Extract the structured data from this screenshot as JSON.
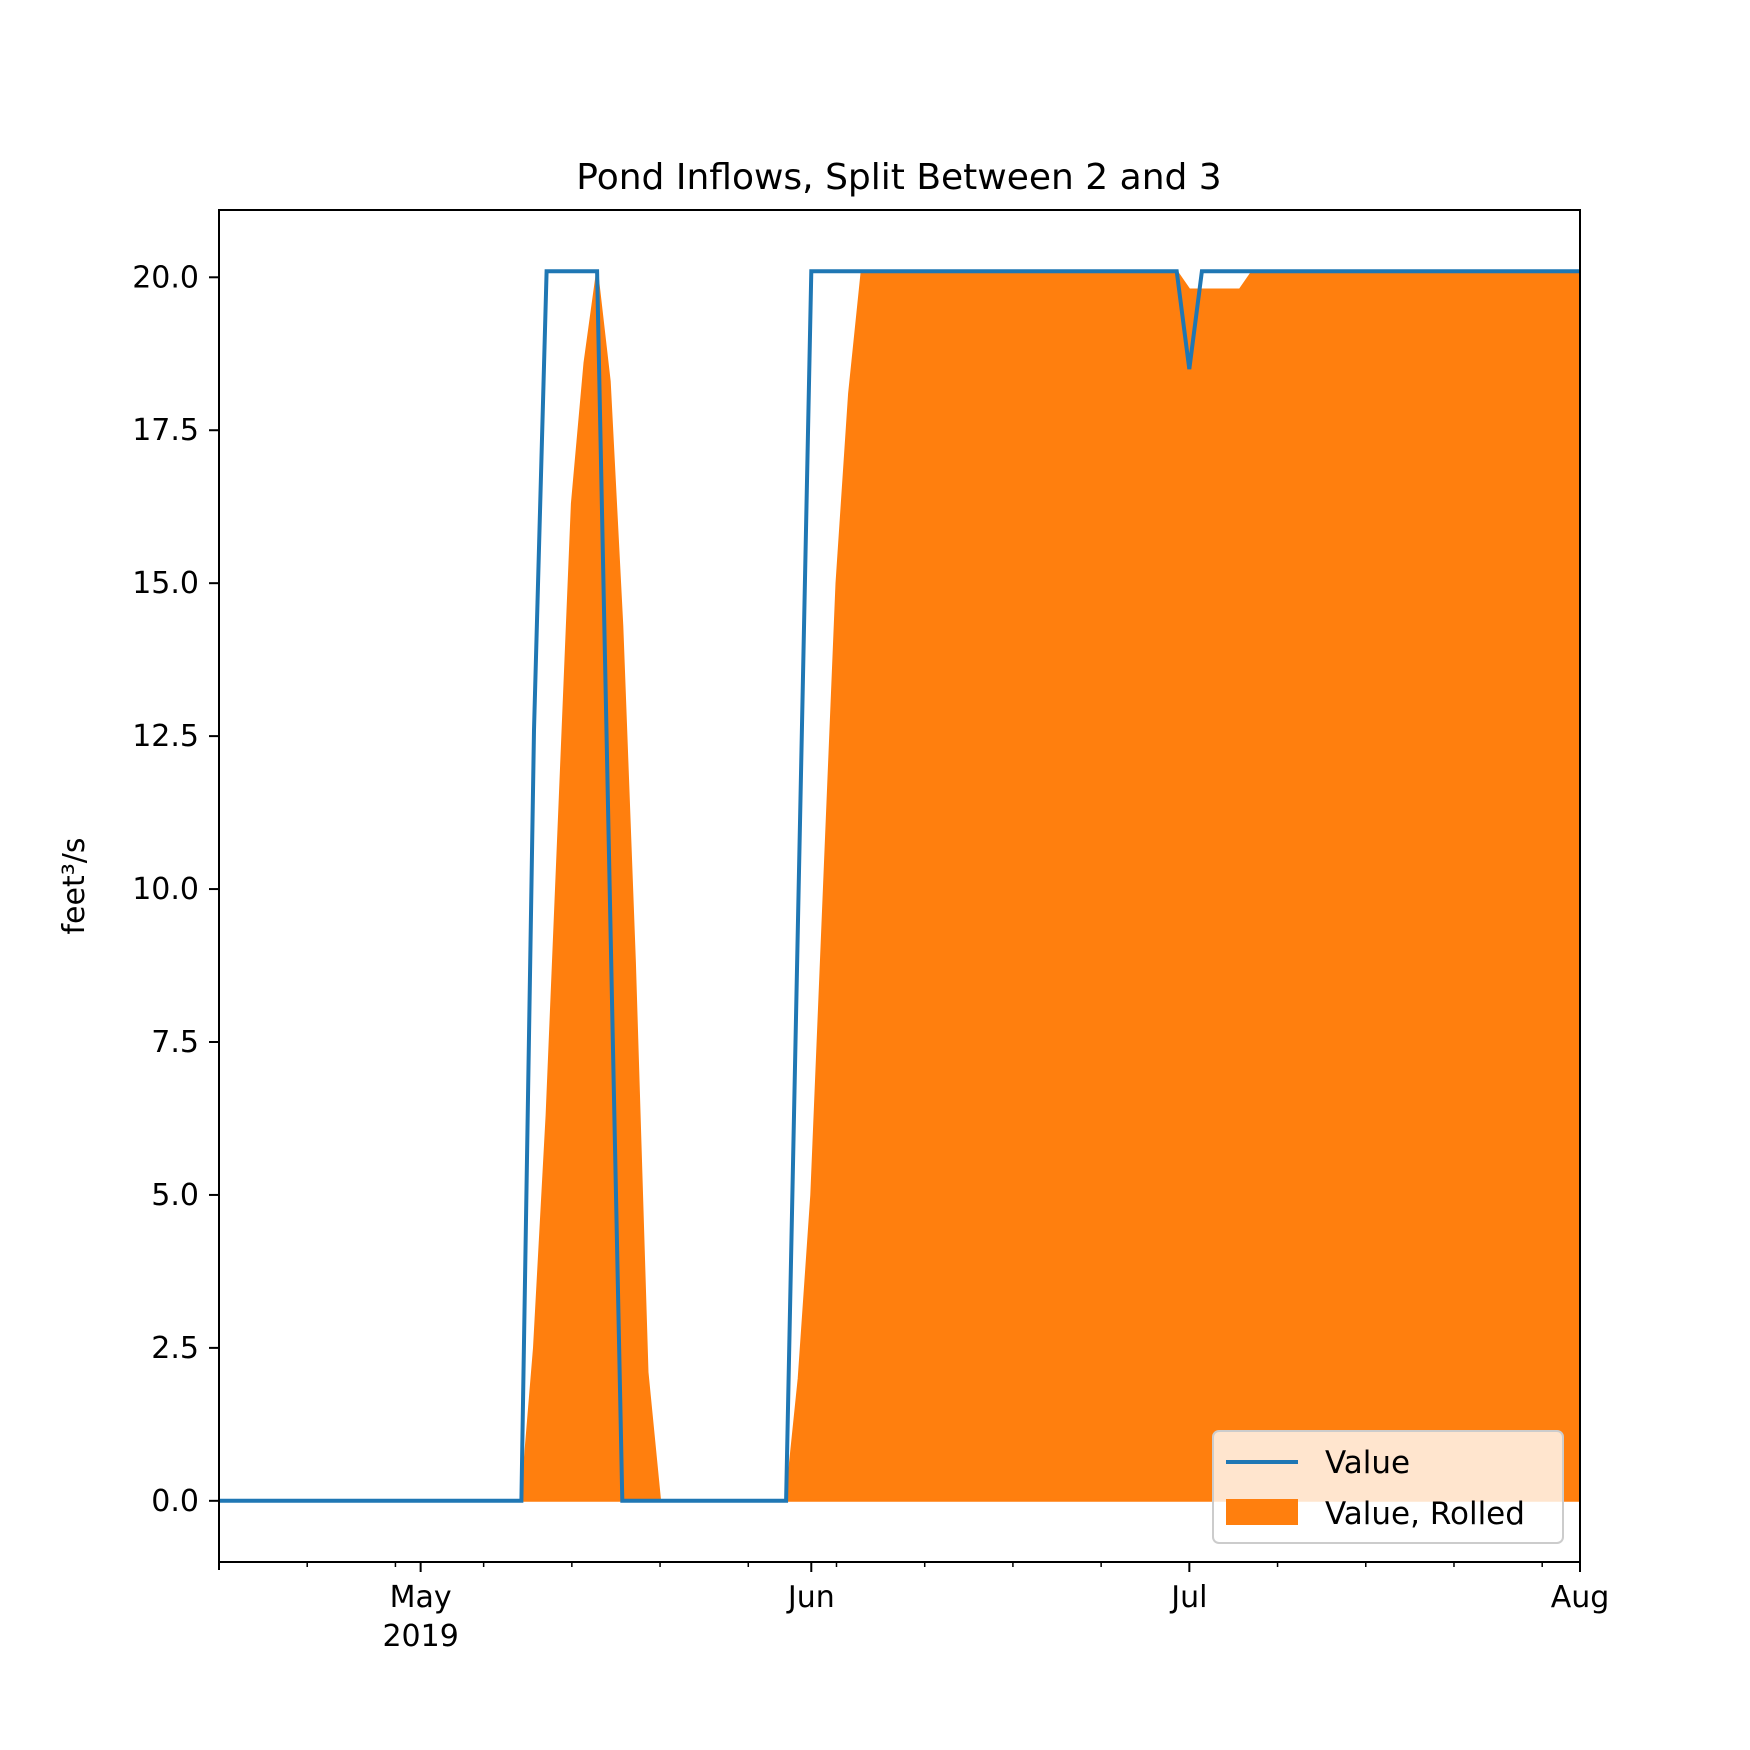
{
  "chart_data": {
    "type": "area",
    "title": "Pond Inflows, Split Between 2 and 3",
    "xlabel": "",
    "ylabel": "feet³/s",
    "xlim": [
      "2019-04-15",
      "2019-08-01"
    ],
    "ylim": [
      -1.0,
      21.1
    ],
    "y_ticks": [
      0.0,
      2.5,
      5.0,
      7.5,
      10.0,
      12.5,
      15.0,
      17.5,
      20.0
    ],
    "y_tick_labels": [
      "0.0",
      "2.5",
      "5.0",
      "7.5",
      "10.0",
      "12.5",
      "15.0",
      "17.5",
      "20.0"
    ],
    "x_ticks": [
      {
        "date": "2019-05-01",
        "label": "May",
        "sublabel": "2019"
      },
      {
        "date": "2019-06-01",
        "label": "Jun",
        "sublabel": ""
      },
      {
        "date": "2019-07-01",
        "label": "Jul",
        "sublabel": ""
      },
      {
        "date": "2019-08-01",
        "label": "Aug",
        "sublabel": ""
      }
    ],
    "minor_x_ticks": [
      "2019-04-22",
      "2019-04-29",
      "2019-05-06",
      "2019-05-13",
      "2019-05-20",
      "2019-05-27",
      "2019-06-03",
      "2019-06-10",
      "2019-06-17",
      "2019-06-24",
      "2019-07-08",
      "2019-07-15",
      "2019-07-22",
      "2019-07-29"
    ],
    "grid": false,
    "legend_position": "lower-right",
    "series": [
      {
        "name": "Value",
        "kind": "line",
        "color": "#1f77b4",
        "points": [
          [
            "2019-04-15",
            0
          ],
          [
            "2019-05-09",
            0
          ],
          [
            "2019-05-10",
            12.6
          ],
          [
            "2019-05-11",
            20.1
          ],
          [
            "2019-05-15",
            20.1
          ],
          [
            "2019-05-16",
            10.0
          ],
          [
            "2019-05-17",
            0
          ],
          [
            "2019-05-21",
            0
          ],
          [
            "2019-05-30",
            0
          ],
          [
            "2019-06-01",
            20.1
          ],
          [
            "2019-06-30",
            20.1
          ],
          [
            "2019-07-01",
            18.5
          ],
          [
            "2019-07-02",
            20.1
          ],
          [
            "2019-08-01",
            20.1
          ]
        ]
      },
      {
        "name": "Value, Rolled",
        "kind": "area",
        "color": "#ff7f0e",
        "points": [
          [
            "2019-04-15",
            0
          ],
          [
            "2019-05-09",
            0
          ],
          [
            "2019-05-10",
            2.5
          ],
          [
            "2019-05-11",
            6.3
          ],
          [
            "2019-05-12",
            11.3
          ],
          [
            "2019-05-13",
            16.3
          ],
          [
            "2019-05-14",
            18.6
          ],
          [
            "2019-05-15",
            20.1
          ],
          [
            "2019-05-16",
            18.3
          ],
          [
            "2019-05-17",
            14.3
          ],
          [
            "2019-05-18",
            8.8
          ],
          [
            "2019-05-19",
            2.1
          ],
          [
            "2019-05-20",
            0
          ],
          [
            "2019-05-30",
            0
          ],
          [
            "2019-05-31",
            2.0
          ],
          [
            "2019-06-01",
            5.0
          ],
          [
            "2019-06-02",
            10.0
          ],
          [
            "2019-06-03",
            15.0
          ],
          [
            "2019-06-04",
            18.1
          ],
          [
            "2019-06-05",
            20.1
          ],
          [
            "2019-06-30",
            20.1
          ],
          [
            "2019-07-01",
            19.8
          ],
          [
            "2019-07-05",
            19.8
          ],
          [
            "2019-07-06",
            20.1
          ],
          [
            "2019-08-01",
            20.1
          ]
        ]
      }
    ]
  }
}
